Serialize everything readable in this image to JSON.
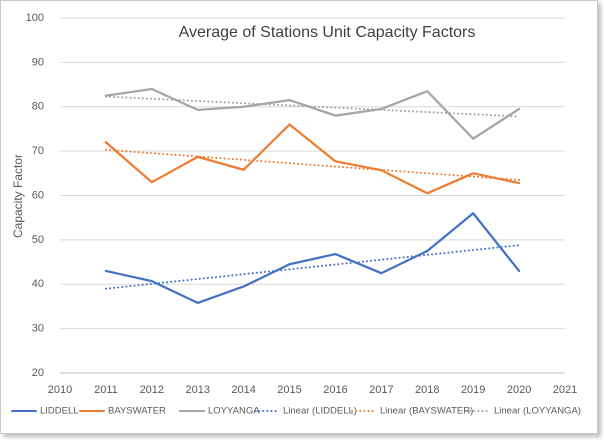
{
  "chart_data": {
    "type": "line",
    "title": "Average of Stations Unit Capacity Factors",
    "y_label": "Capacity Factor",
    "xlim": [
      2010,
      2021
    ],
    "xticks": [
      2010,
      2011,
      2012,
      2013,
      2014,
      2015,
      2016,
      2017,
      2018,
      2019,
      2020,
      2021
    ],
    "ylim": [
      20,
      100
    ],
    "yticks": [
      20,
      30,
      40,
      50,
      60,
      70,
      80,
      90,
      100
    ],
    "grid": true,
    "legend": "bottom",
    "series": [
      {
        "name": "LIDDELL",
        "color": "#4472c4",
        "dashed": false,
        "x": [
          2011,
          2012,
          2013,
          2014,
          2015,
          2016,
          2017,
          2018,
          2019,
          2020
        ],
        "values": [
          43,
          40.7,
          35.8,
          39.5,
          44.5,
          46.8,
          42.5,
          47.5,
          56,
          43
        ]
      },
      {
        "name": "BAYSWATER",
        "color": "#ed7d31",
        "dashed": false,
        "x": [
          2011,
          2012,
          2013,
          2014,
          2015,
          2016,
          2017,
          2018,
          2019,
          2020
        ],
        "values": [
          72,
          63,
          68.7,
          65.8,
          76,
          67.7,
          65.7,
          60.5,
          65,
          62.8
        ]
      },
      {
        "name": "LOYYANGA",
        "color": "#a5a5a5",
        "dashed": false,
        "x": [
          2011,
          2012,
          2013,
          2014,
          2015,
          2016,
          2017,
          2018,
          2019,
          2020
        ],
        "values": [
          82.5,
          84,
          79.3,
          80,
          81.5,
          78,
          79.5,
          83.5,
          72.8,
          79.5
        ]
      },
      {
        "name": "Linear (LIDDELL)",
        "color": "#4472c4",
        "dashed": true,
        "x": [
          2011,
          2020
        ],
        "values": [
          39,
          48.8
        ]
      },
      {
        "name": "Linear (BAYSWATER)",
        "color": "#ed7d31",
        "dashed": true,
        "x": [
          2011,
          2020
        ],
        "values": [
          70.3,
          63.5
        ]
      },
      {
        "name": "Linear (LOYYANGA)",
        "color": "#a5a5a5",
        "dashed": true,
        "x": [
          2011,
          2020
        ],
        "values": [
          82.3,
          77.8
        ]
      }
    ]
  }
}
